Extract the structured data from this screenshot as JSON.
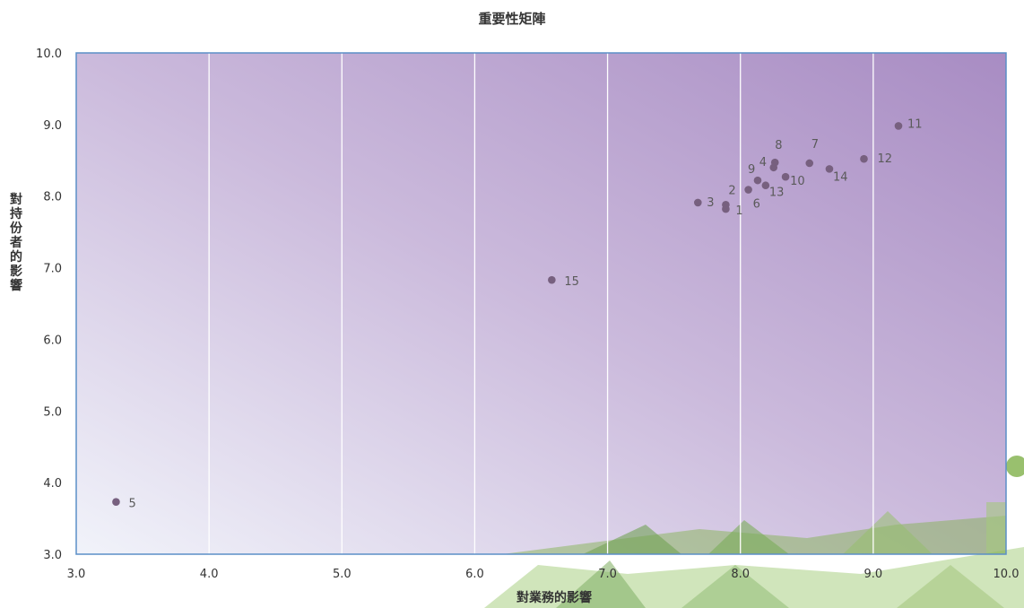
{
  "chart_data": {
    "type": "scatter",
    "title": "重要性矩陣",
    "xlabel": "對業務的影響",
    "ylabel": "對持份者的影響",
    "xlim": [
      3.0,
      10.0
    ],
    "ylim": [
      3.0,
      10.0
    ],
    "x_ticks": [
      "3.0",
      "4.0",
      "5.0",
      "6.0",
      "7.0",
      "8.0",
      "9.0",
      "10.0"
    ],
    "y_ticks": [
      "3.0",
      "4.0",
      "5.0",
      "6.0",
      "7.0",
      "8.0",
      "9.0",
      "10.0"
    ],
    "grid": "vertical",
    "points": [
      {
        "label": "1",
        "x": 7.89,
        "y": 7.82
      },
      {
        "label": "2",
        "x": 7.89,
        "y": 7.88
      },
      {
        "label": "3",
        "x": 7.68,
        "y": 7.91
      },
      {
        "label": "4",
        "x": 8.25,
        "y": 8.4
      },
      {
        "label": "5",
        "x": 3.3,
        "y": 3.73
      },
      {
        "label": "6",
        "x": 8.06,
        "y": 8.09
      },
      {
        "label": "7",
        "x": 8.52,
        "y": 8.46
      },
      {
        "label": "8",
        "x": 8.26,
        "y": 8.47
      },
      {
        "label": "9",
        "x": 8.13,
        "y": 8.22
      },
      {
        "label": "10",
        "x": 8.34,
        "y": 8.27
      },
      {
        "label": "11",
        "x": 9.19,
        "y": 8.98
      },
      {
        "label": "12",
        "x": 8.93,
        "y": 8.52
      },
      {
        "label": "13",
        "x": 8.19,
        "y": 8.15
      },
      {
        "label": "14",
        "x": 8.67,
        "y": 8.38
      },
      {
        "label": "15",
        "x": 6.58,
        "y": 6.83
      }
    ],
    "colors": {
      "marker": "#77607f",
      "label": "#5a5a5a",
      "plot_gradient_start": "#f1f3fa",
      "plot_gradient_end": "#a88cc3",
      "border": "#5b8fc7",
      "grid": "#ffffff",
      "decoration": "#7fb04a"
    }
  }
}
